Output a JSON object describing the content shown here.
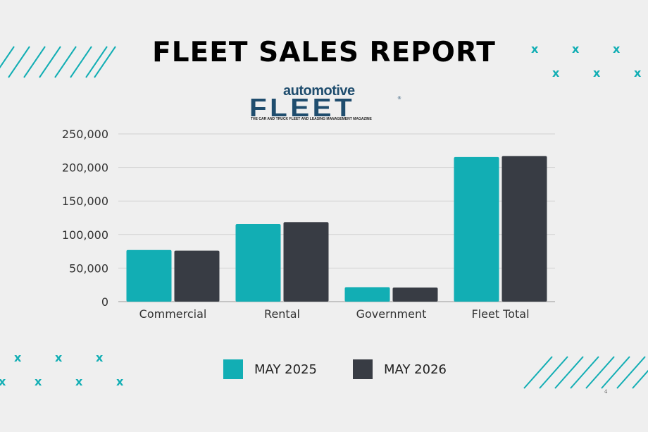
{
  "slide": {
    "title": "FLEET SALES REPORT",
    "page_number": "4"
  },
  "logo": {
    "top_text": "automotive",
    "main_text": "FLEET",
    "registered": "®",
    "tagline": "THE CAR AND TRUCK FLEET AND LEASING MANAGEMENT MAGAZINE"
  },
  "decor": {
    "mark_glyph": "x"
  },
  "colors": {
    "background": "#efefef",
    "accent_teal": "#12aeb4",
    "dark_gray": "#383c44",
    "logo_blue": "#1f4d6e"
  },
  "chart_data": {
    "type": "bar",
    "categories": [
      "Commercial",
      "Rental",
      "Government",
      "Fleet Total"
    ],
    "series": [
      {
        "name": "MAY 2025",
        "color": "#12aeb4",
        "values": [
          77000,
          115500,
          21500,
          215500
        ]
      },
      {
        "name": "MAY 2026",
        "color": "#383c44",
        "values": [
          76000,
          118500,
          21000,
          217000
        ]
      }
    ],
    "ylim": [
      0,
      250000
    ],
    "yticks": [
      "0",
      "50,000",
      "100,000",
      "150,000",
      "200,000",
      "250,000"
    ],
    "ytick_values": [
      0,
      50000,
      100000,
      150000,
      200000,
      250000
    ],
    "grid": true,
    "legend_position": "bottom"
  }
}
